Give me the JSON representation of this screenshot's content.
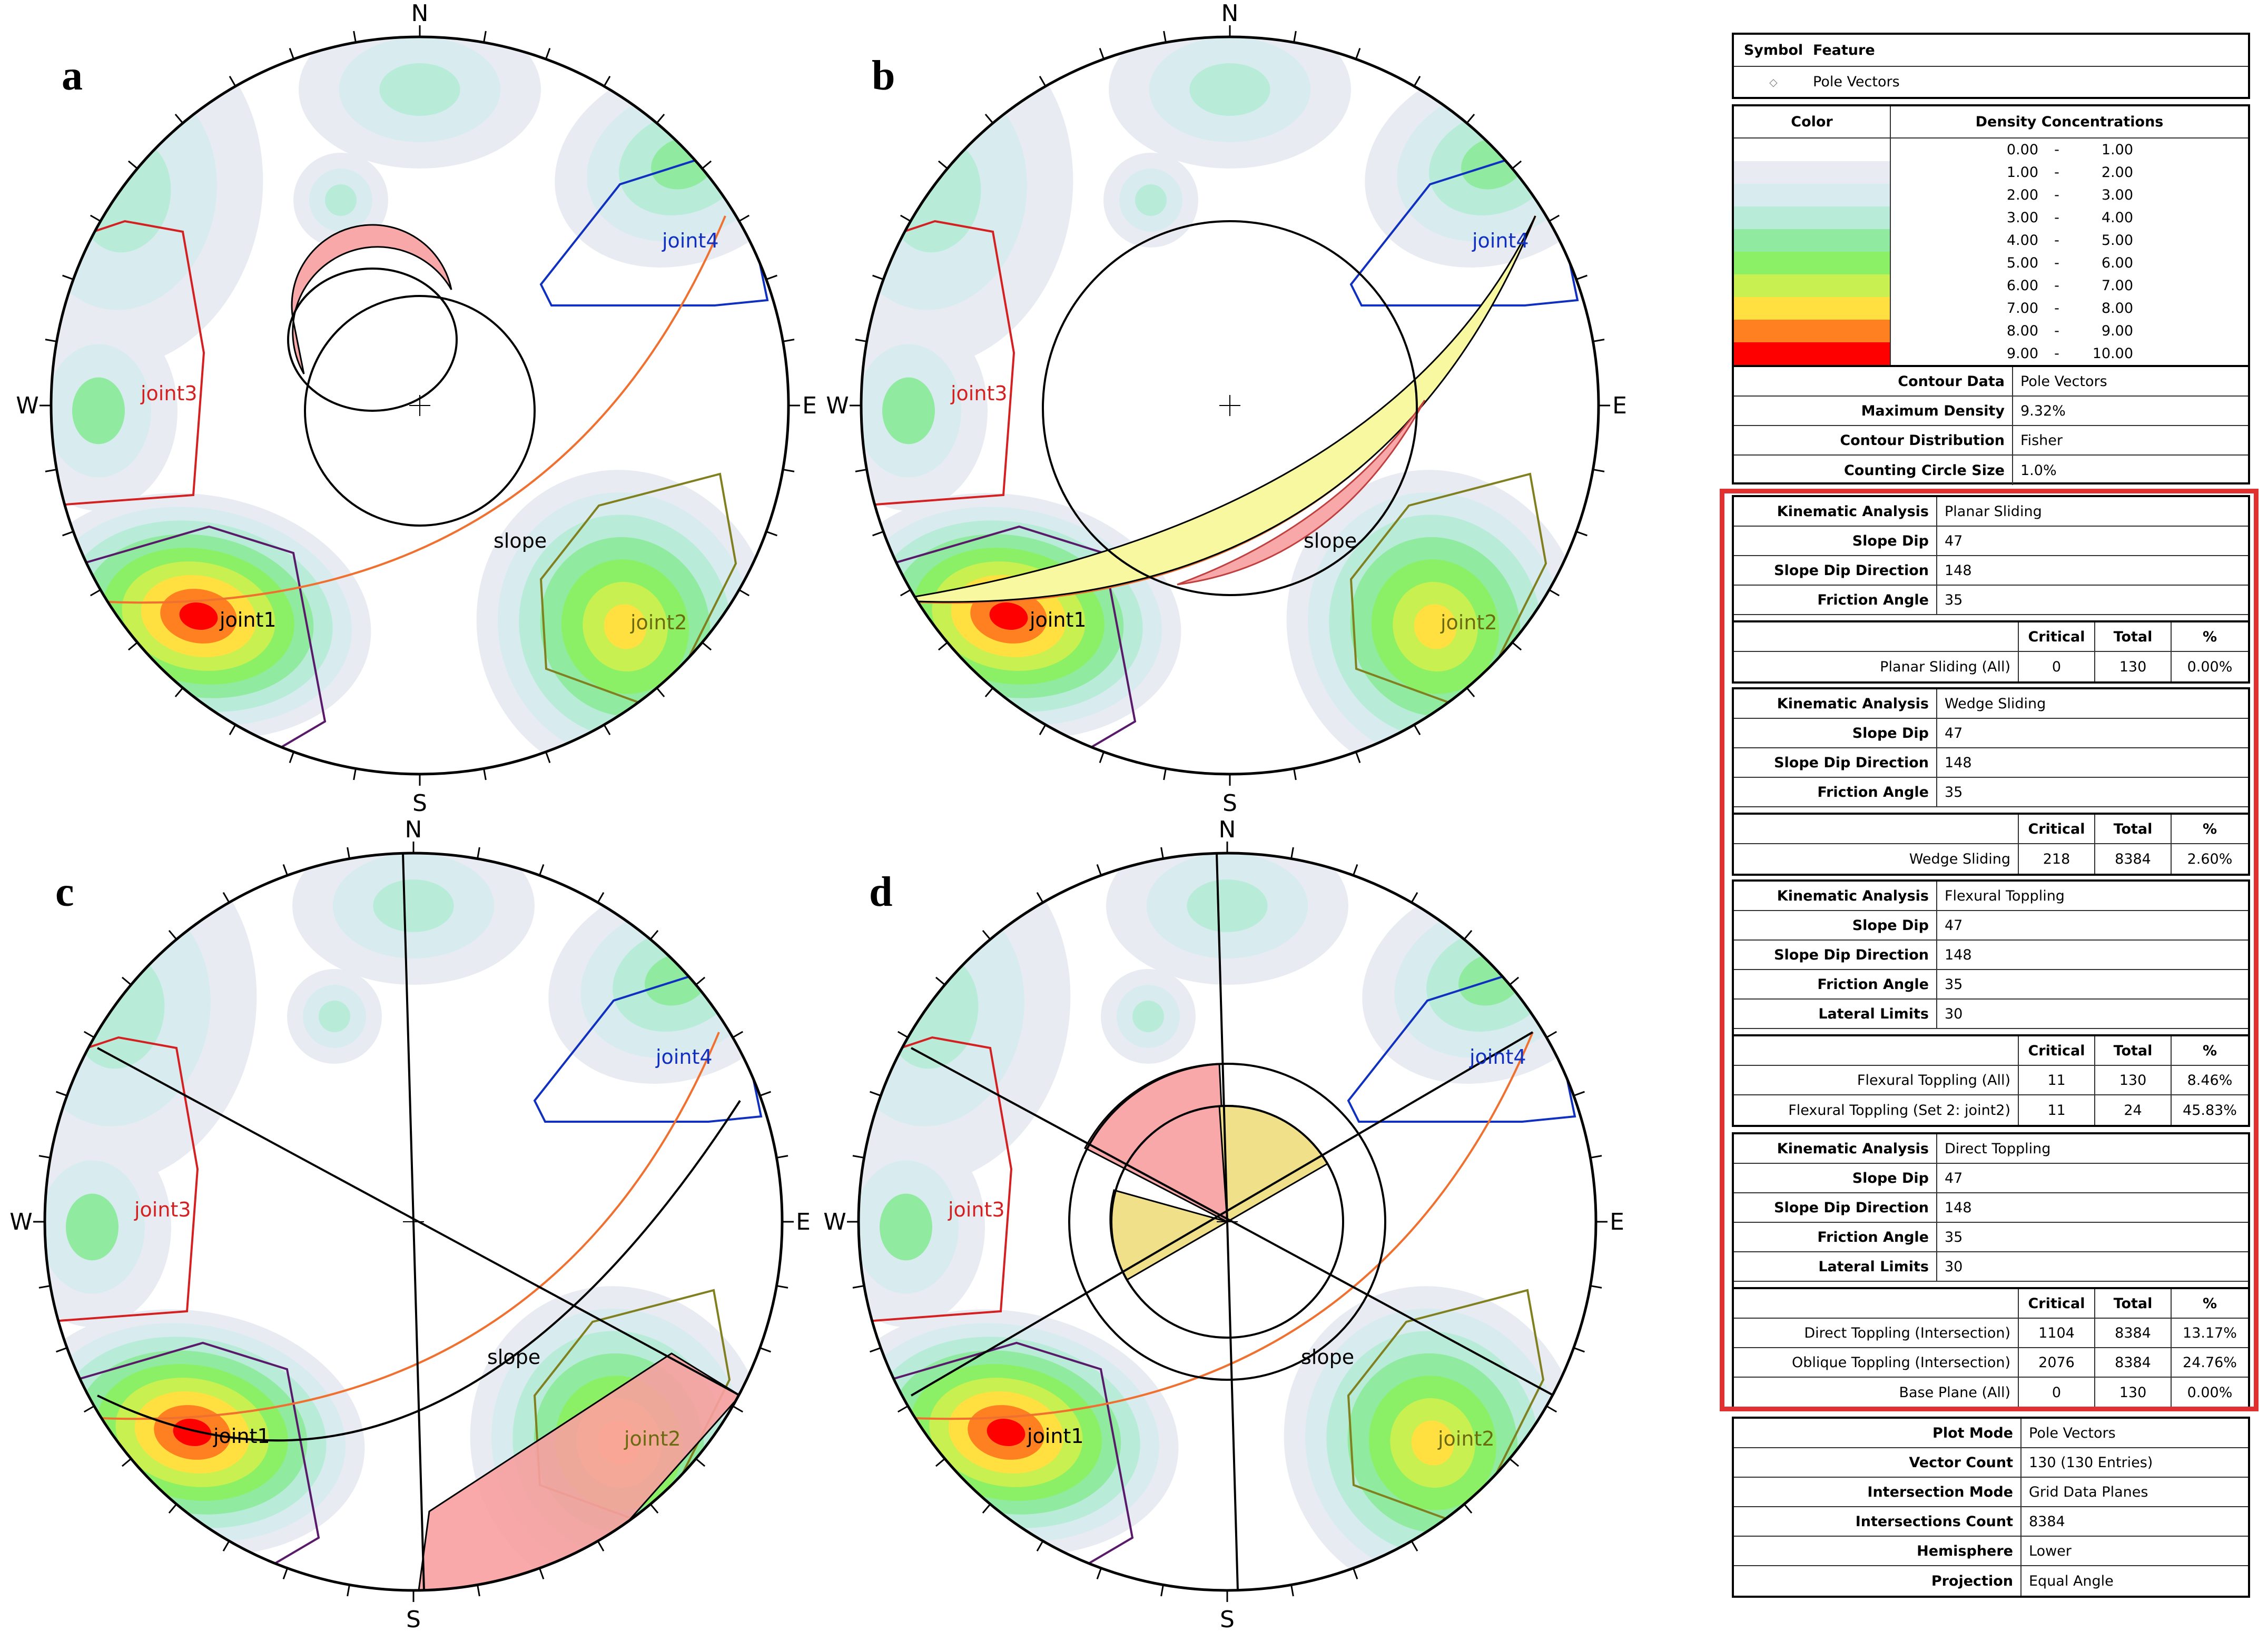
{
  "panels": [
    {
      "letter": "a",
      "joints": [
        "joint1",
        "joint2",
        "joint3",
        "joint4"
      ],
      "slope_label": "slope"
    },
    {
      "letter": "b",
      "joints": [
        "joint1",
        "joint2",
        "joint3",
        "joint4"
      ],
      "slope_label": "slope"
    },
    {
      "letter": "c",
      "joints": [
        "joint1",
        "joint2",
        "joint3",
        "joint4"
      ],
      "slope_label": "slope"
    },
    {
      "letter": "d",
      "joints": [
        "joint1",
        "joint2",
        "joint3",
        "joint4"
      ],
      "slope_label": "slope"
    }
  ],
  "compass": {
    "n": "N",
    "e": "E",
    "s": "S",
    "w": "W"
  },
  "legend_symbol": {
    "col1": "Symbol",
    "col2": "Feature",
    "symbol_glyph": "◇",
    "feature": "Pole Vectors"
  },
  "density": {
    "col_color": "Color",
    "col_density": "Density Concentrations",
    "bins": [
      {
        "from": "0.00",
        "to": "1.00",
        "color": "#ffffff"
      },
      {
        "from": "1.00",
        "to": "2.00",
        "color": "#e8ecf2"
      },
      {
        "from": "2.00",
        "to": "3.00",
        "color": "#d8ecf0"
      },
      {
        "from": "3.00",
        "to": "4.00",
        "color": "#b8ecd8"
      },
      {
        "from": "4.00",
        "to": "5.00",
        "color": "#90eaa0"
      },
      {
        "from": "5.00",
        "to": "6.00",
        "color": "#8cf066"
      },
      {
        "from": "6.00",
        "to": "7.00",
        "color": "#c8f050"
      },
      {
        "from": "7.00",
        "to": "8.00",
        "color": "#ffe040"
      },
      {
        "from": "8.00",
        "to": "9.00",
        "color": "#ff8020"
      },
      {
        "from": "9.00",
        "to": "10.00",
        "color": "#ff0000"
      }
    ],
    "dash": "-"
  },
  "contour": [
    {
      "k": "Contour Data",
      "v": "Pole Vectors"
    },
    {
      "k": "Maximum Density",
      "v": "9.32%"
    },
    {
      "k": "Contour Distribution",
      "v": "Fisher"
    },
    {
      "k": "Counting Circle Size",
      "v": "1.0%"
    }
  ],
  "results_header": {
    "critical": "Critical",
    "total": "Total",
    "pct": "%"
  },
  "analyses": [
    {
      "params": [
        {
          "k": "Kinematic Analysis",
          "v": "Planar Sliding"
        },
        {
          "k": "Slope Dip",
          "v": "47"
        },
        {
          "k": "Slope Dip Direction",
          "v": "148"
        },
        {
          "k": "Friction Angle",
          "v": "35"
        }
      ],
      "results": [
        {
          "name": "Planar Sliding (All)",
          "critical": "0",
          "total": "130",
          "pct": "0.00%"
        }
      ]
    },
    {
      "params": [
        {
          "k": "Kinematic Analysis",
          "v": "Wedge Sliding"
        },
        {
          "k": "Slope Dip",
          "v": "47"
        },
        {
          "k": "Slope Dip Direction",
          "v": "148"
        },
        {
          "k": "Friction Angle",
          "v": "35"
        }
      ],
      "results": [
        {
          "name": "Wedge Sliding",
          "critical": "218",
          "total": "8384",
          "pct": "2.60%"
        }
      ]
    },
    {
      "params": [
        {
          "k": "Kinematic Analysis",
          "v": "Flexural Toppling"
        },
        {
          "k": "Slope Dip",
          "v": "47"
        },
        {
          "k": "Slope Dip Direction",
          "v": "148"
        },
        {
          "k": "Friction Angle",
          "v": "35"
        },
        {
          "k": "Lateral Limits",
          "v": "30"
        }
      ],
      "results": [
        {
          "name": "Flexural Toppling (All)",
          "critical": "11",
          "total": "130",
          "pct": "8.46%"
        },
        {
          "name": "Flexural Toppling (Set 2: joint2)",
          "critical": "11",
          "total": "24",
          "pct": "45.83%"
        }
      ]
    },
    {
      "params": [
        {
          "k": "Kinematic Analysis",
          "v": "Direct Toppling"
        },
        {
          "k": "Slope Dip",
          "v": "47"
        },
        {
          "k": "Slope Dip Direction",
          "v": "148"
        },
        {
          "k": "Friction Angle",
          "v": "35"
        },
        {
          "k": "Lateral Limits",
          "v": "30"
        }
      ],
      "results": [
        {
          "name": "Direct Toppling (Intersection)",
          "critical": "1104",
          "total": "8384",
          "pct": "13.17%"
        },
        {
          "name": "Oblique Toppling (Intersection)",
          "critical": "2076",
          "total": "8384",
          "pct": "24.76%"
        },
        {
          "name": "Base Plane (All)",
          "critical": "0",
          "total": "130",
          "pct": "0.00%"
        }
      ]
    }
  ],
  "plot_info": [
    {
      "k": "Plot Mode",
      "v": "Pole Vectors"
    },
    {
      "k": "Vector Count",
      "v": "130 (130 Entries)"
    },
    {
      "k": "Intersection Mode",
      "v": "Grid Data Planes"
    },
    {
      "k": "Intersections Count",
      "v": "8384"
    },
    {
      "k": "Hemisphere",
      "v": "Lower"
    },
    {
      "k": "Projection",
      "v": "Equal Angle"
    }
  ]
}
